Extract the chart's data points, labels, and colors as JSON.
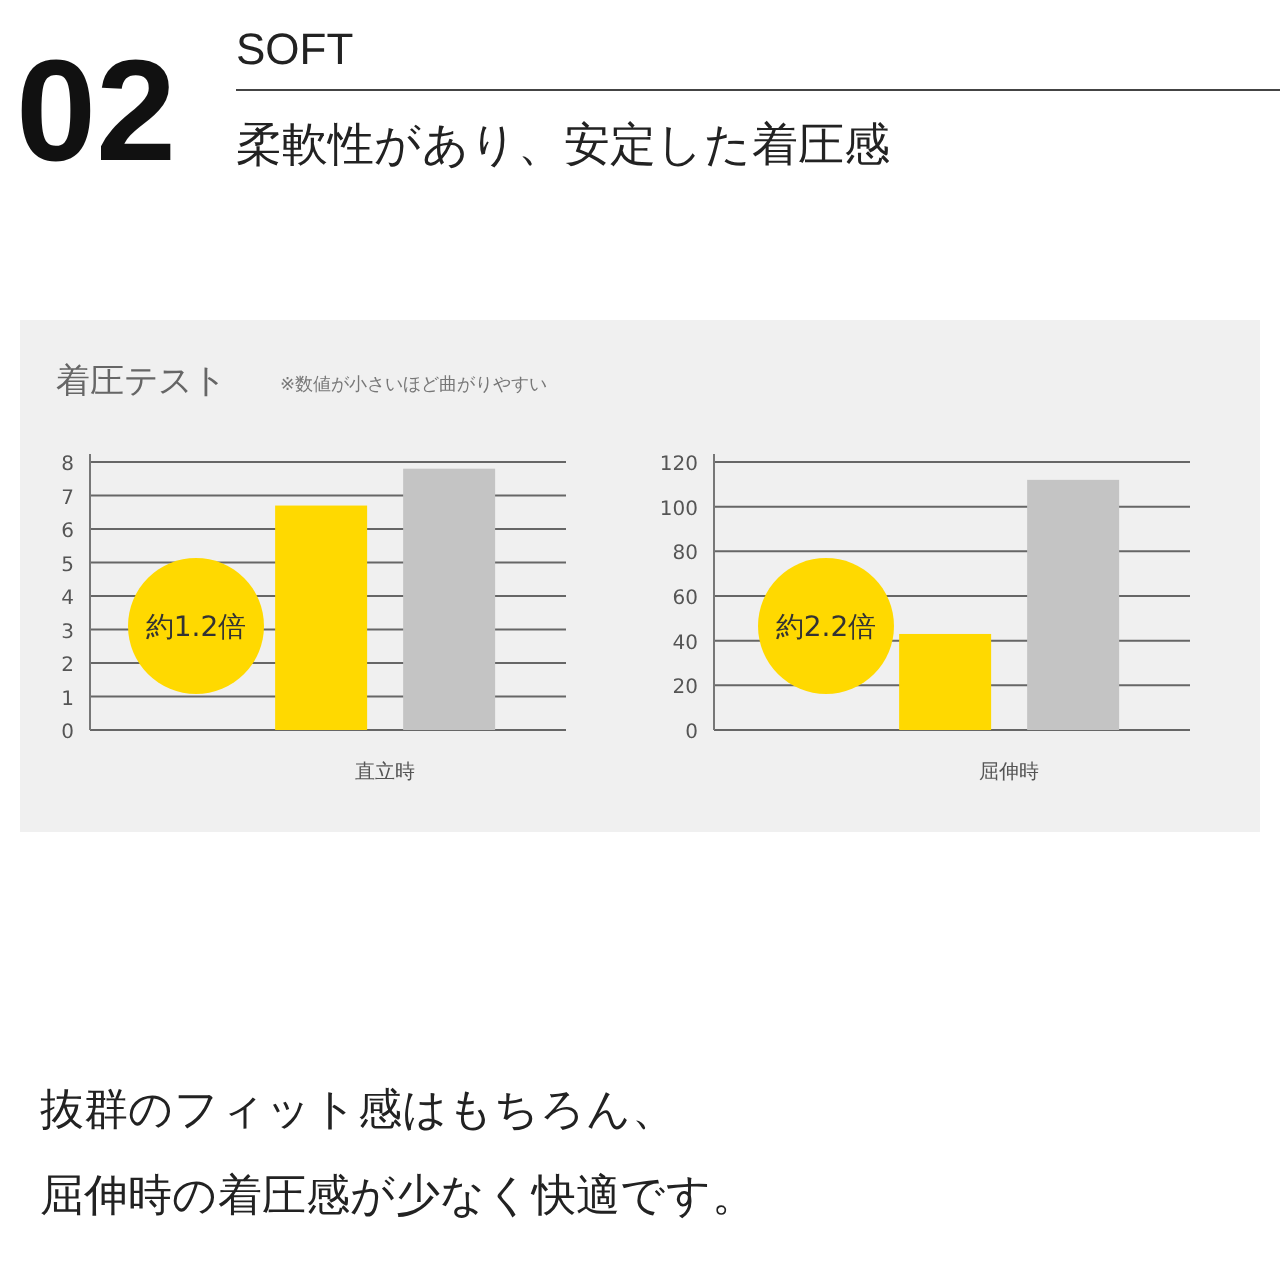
{
  "chart_data": [
    {
      "type": "bar",
      "title": "着圧テスト",
      "subtitle": "※数値が小さいほど曲がりやすい",
      "categories": [
        "直立時"
      ],
      "series": [
        {
          "color": "#ffd900",
          "values": [
            6.7
          ]
        },
        {
          "color": "#c4c4c4",
          "values": [
            7.8
          ]
        }
      ],
      "ylim": [
        0,
        8
      ],
      "yticks": [
        0,
        1,
        2,
        3,
        4,
        5,
        6,
        7,
        8
      ],
      "grid": "y",
      "annotations": [
        "02",
        "SOFT",
        "柔軟性があり、安定した着圧感",
        "約1.2倍",
        "抜群のフィット感はもちろん、",
        "屈伸時の着圧感が少なく快適です。"
      ]
    },
    {
      "type": "bar",
      "categories": [
        "屈伸時"
      ],
      "series": [
        {
          "color": "#ffd900",
          "values": [
            43
          ]
        },
        {
          "color": "#c4c4c4",
          "values": [
            112
          ]
        }
      ],
      "ylim": [
        0,
        120
      ],
      "yticks": [
        0,
        20,
        40,
        60,
        80,
        100,
        120
      ],
      "grid": "y",
      "annotations": [
        "約2.2倍"
      ]
    }
  ]
}
